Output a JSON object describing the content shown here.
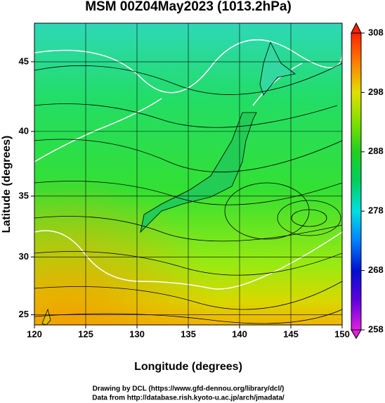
{
  "title": "MSM 00Z04May2023 (1013.2hPa)",
  "map": {
    "xlabel": "Longitude (degrees)",
    "ylabel": "Latitude  (degrees)",
    "xlim": [
      120,
      150
    ],
    "ylim": [
      24.1,
      47.6
    ],
    "xticks": [
      120,
      125,
      130,
      135,
      140,
      145,
      150
    ],
    "yticks": [
      25,
      30,
      35,
      40,
      45
    ]
  },
  "colorbar": {
    "lim": [
      258,
      308
    ],
    "ticks": [
      258,
      268,
      278,
      288,
      298,
      308
    ]
  },
  "credits": [
    "Drawing by DCL (https://www.gfd-dennou.org/library/dcl/)",
    "Data from http://database.rish.kyoto-u.ac.jp/arch/jmadata/"
  ]
}
